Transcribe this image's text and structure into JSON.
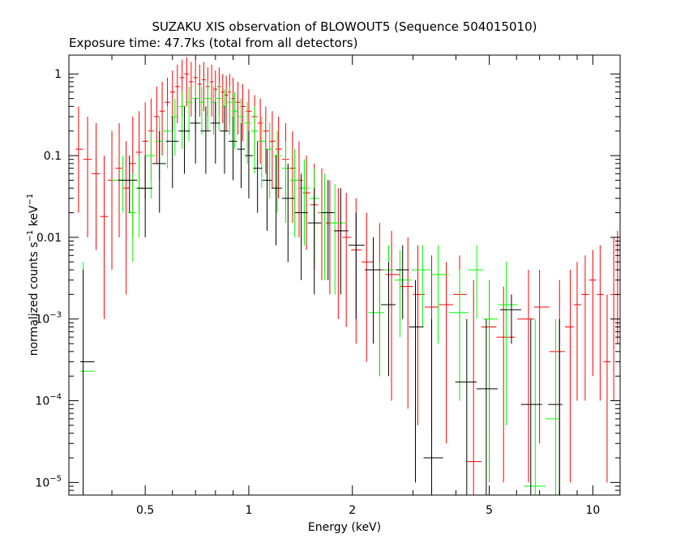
{
  "chart_data": {
    "type": "scatter",
    "title": "SUZAKU XIS observation of BLOWOUT5 (Sequence 504015010)",
    "subtitle": "Exposure time: 47.7ks (total from all detectors)",
    "xlabel": "Energy (keV)",
    "ylabel": {
      "main": "normalized counts s",
      "exp1": "−1",
      "mid": " keV",
      "exp2": "−1"
    },
    "xscale": "log",
    "yscale": "log",
    "xlim": [
      0.3,
      12
    ],
    "ylim": [
      7e-06,
      1.7
    ],
    "x_ticks": [
      {
        "value": 0.5,
        "label": "0.5"
      },
      {
        "value": 1,
        "label": "1"
      },
      {
        "value": 2,
        "label": "2"
      },
      {
        "value": 5,
        "label": "5"
      },
      {
        "value": 10,
        "label": "10"
      }
    ],
    "y_ticks": [
      {
        "value": 1,
        "label": "1"
      },
      {
        "value": 0.1,
        "label": "0.1"
      },
      {
        "value": 0.01,
        "label": "0.01"
      },
      {
        "value": 0.001,
        "label": "10",
        "exp": "−3"
      },
      {
        "value": 0.0001,
        "label": "10",
        "exp": "−4"
      },
      {
        "value": 1e-05,
        "label": "10",
        "exp": "−5"
      }
    ],
    "grid": false,
    "legend": "none",
    "series": [
      {
        "color": "#ff0000",
        "points": [
          [
            0.32,
            0.12,
            0.02,
            0.4
          ],
          [
            0.34,
            0.09,
            0.01,
            0.3
          ],
          [
            0.36,
            0.06,
            0.007,
            0.25
          ],
          [
            0.38,
            0.018,
            0.001,
            0.1
          ],
          [
            0.4,
            0.05,
            0.004,
            0.2
          ],
          [
            0.42,
            0.07,
            0.01,
            0.25
          ],
          [
            0.44,
            0.04,
            0.002,
            0.15
          ],
          [
            0.46,
            0.08,
            0.01,
            0.3
          ],
          [
            0.48,
            0.11,
            0.02,
            0.35
          ],
          [
            0.5,
            0.15,
            0.03,
            0.45
          ],
          [
            0.52,
            0.2,
            0.05,
            0.5
          ],
          [
            0.54,
            0.3,
            0.08,
            0.7
          ],
          [
            0.56,
            0.35,
            0.1,
            0.8
          ],
          [
            0.58,
            0.45,
            0.15,
            0.9
          ],
          [
            0.6,
            0.6,
            0.2,
            1.1
          ],
          [
            0.62,
            0.7,
            0.25,
            1.3
          ],
          [
            0.64,
            0.9,
            0.3,
            1.5
          ],
          [
            0.66,
            1.0,
            0.4,
            1.6
          ],
          [
            0.68,
            0.8,
            0.3,
            1.4
          ],
          [
            0.7,
            0.9,
            0.35,
            1.5
          ],
          [
            0.72,
            0.75,
            0.3,
            1.3
          ],
          [
            0.74,
            0.85,
            0.35,
            1.4
          ],
          [
            0.76,
            0.7,
            0.3,
            1.2
          ],
          [
            0.78,
            0.8,
            0.3,
            1.3
          ],
          [
            0.8,
            0.65,
            0.25,
            1.1
          ],
          [
            0.82,
            0.7,
            0.3,
            1.2
          ],
          [
            0.84,
            0.6,
            0.25,
            1.0
          ],
          [
            0.86,
            0.55,
            0.2,
            0.95
          ],
          [
            0.88,
            0.6,
            0.25,
            1.0
          ],
          [
            0.9,
            0.5,
            0.2,
            0.9
          ],
          [
            0.93,
            0.45,
            0.18,
            0.8
          ],
          [
            0.96,
            0.4,
            0.15,
            0.75
          ],
          [
            1.0,
            0.35,
            0.12,
            0.65
          ],
          [
            1.04,
            0.3,
            0.1,
            0.55
          ],
          [
            1.08,
            0.25,
            0.08,
            0.5
          ],
          [
            1.12,
            0.2,
            0.06,
            0.4
          ],
          [
            1.17,
            0.15,
            0.04,
            0.35
          ],
          [
            1.22,
            0.12,
            0.03,
            0.3
          ],
          [
            1.28,
            0.09,
            0.02,
            0.25
          ],
          [
            1.34,
            0.07,
            0.015,
            0.2
          ],
          [
            1.4,
            0.05,
            0.01,
            0.15
          ],
          [
            1.47,
            0.035,
            0.007,
            0.1
          ],
          [
            1.55,
            0.025,
            0.004,
            0.08
          ],
          [
            1.63,
            0.02,
            0.003,
            0.07
          ],
          [
            1.72,
            0.015,
            0.002,
            0.05
          ],
          [
            1.82,
            0.012,
            0.001,
            0.04
          ],
          [
            1.92,
            0.01,
            0.0008,
            0.035
          ],
          [
            2.05,
            0.007,
            0.0005,
            0.03
          ],
          [
            2.2,
            0.005,
            0.0003,
            0.02
          ],
          [
            2.4,
            0.004,
            0.0002,
            0.015
          ],
          [
            2.6,
            0.0035,
            0.0001,
            0.012
          ],
          [
            2.9,
            0.0025,
            8e-05,
            0.01
          ],
          [
            3.1,
            0.002,
            5e-05,
            0.008
          ],
          [
            3.4,
            0.0014,
            4e-05,
            0.006
          ],
          [
            3.75,
            0.0015,
            3e-05,
            0.005
          ],
          [
            4.1,
            0.002,
            0.0001,
            0.006
          ],
          [
            4.5,
            1.8e-05,
            7e-06,
            0.003
          ],
          [
            5.0,
            0.0008,
            1e-05,
            0.003
          ],
          [
            5.5,
            0.0006,
            1e-05,
            0.0025
          ],
          [
            6.5,
            0.001,
            1e-05,
            0.004
          ],
          [
            7.0,
            0.0014,
            3e-05,
            0.004
          ],
          [
            8.0,
            0.0004,
            7e-06,
            0.003
          ],
          [
            8.6,
            0.0008,
            1e-05,
            0.004
          ],
          [
            9.0,
            0.0015,
            0.0001,
            0.005
          ],
          [
            9.5,
            0.002,
            0.0001,
            0.006
          ],
          [
            10.0,
            0.003,
            0.0002,
            0.007
          ],
          [
            10.5,
            0.002,
            0.0001,
            0.008
          ],
          [
            11.0,
            0.0003,
            1e-05,
            0.002
          ],
          [
            11.5,
            0.002,
            0.0001,
            0.01
          ],
          [
            11.8,
            0.004,
            0.0005,
            0.012
          ]
        ]
      },
      {
        "color": "#00ff00",
        "points": [
          [
            0.33,
            0.00023,
            7e-06,
            0.005
          ],
          [
            0.43,
            0.05,
            0.02,
            0.1
          ],
          [
            0.46,
            0.02,
            0.005,
            0.06
          ],
          [
            0.48,
            0.04,
            0.01,
            0.1
          ],
          [
            0.52,
            0.1,
            0.03,
            0.2
          ],
          [
            0.55,
            0.15,
            0.05,
            0.3
          ],
          [
            0.58,
            0.2,
            0.07,
            0.4
          ],
          [
            0.61,
            0.3,
            0.1,
            0.5
          ],
          [
            0.64,
            0.4,
            0.12,
            0.6
          ],
          [
            0.67,
            0.45,
            0.15,
            0.7
          ],
          [
            0.7,
            0.5,
            0.2,
            0.75
          ],
          [
            0.73,
            0.45,
            0.18,
            0.7
          ],
          [
            0.76,
            0.5,
            0.2,
            0.8
          ],
          [
            0.79,
            0.45,
            0.18,
            0.7
          ],
          [
            0.82,
            0.5,
            0.2,
            0.75
          ],
          [
            0.85,
            0.4,
            0.15,
            0.65
          ],
          [
            0.88,
            0.45,
            0.18,
            0.7
          ],
          [
            0.91,
            0.35,
            0.12,
            0.6
          ],
          [
            0.95,
            0.3,
            0.1,
            0.5
          ],
          [
            0.99,
            0.25,
            0.08,
            0.45
          ],
          [
            1.04,
            0.2,
            0.06,
            0.4
          ],
          [
            1.09,
            0.15,
            0.04,
            0.3
          ],
          [
            1.15,
            0.12,
            0.03,
            0.25
          ],
          [
            1.21,
            0.1,
            0.02,
            0.2
          ],
          [
            1.28,
            0.07,
            0.015,
            0.15
          ],
          [
            1.36,
            0.05,
            0.01,
            0.12
          ],
          [
            1.45,
            0.04,
            0.008,
            0.09
          ],
          [
            1.55,
            0.03,
            0.005,
            0.07
          ],
          [
            1.66,
            0.02,
            0.003,
            0.06
          ],
          [
            1.78,
            0.015,
            0.002,
            0.045
          ],
          [
            2.4,
            0.0012,
            0.0002,
            0.005
          ],
          [
            2.55,
            0.004,
            0.001,
            0.008
          ],
          [
            2.75,
            0.003,
            0.0006,
            0.007
          ],
          [
            3.2,
            0.004,
            0.0008,
            0.008
          ],
          [
            3.55,
            0.0035,
            0.0005,
            0.008
          ],
          [
            4.1,
            0.0012,
            0.0001,
            0.004
          ],
          [
            4.6,
            0.004,
            0.001,
            0.008
          ],
          [
            5.0,
            0.001,
            1e-05,
            0.003
          ],
          [
            5.6,
            0.0015,
            5e-05,
            0.005
          ],
          [
            6.8,
            9e-06,
            7e-06,
            0.001
          ],
          [
            7.8,
            6e-05,
            7e-06,
            0.001
          ]
        ]
      },
      {
        "color": "#000000",
        "points": [
          [
            0.33,
            0.0003,
            7e-06,
            0.004
          ],
          [
            0.45,
            0.05,
            0.02,
            0.1
          ],
          [
            0.5,
            0.04,
            0.01,
            0.1
          ],
          [
            0.55,
            0.08,
            0.02,
            0.2
          ],
          [
            0.6,
            0.15,
            0.04,
            0.3
          ],
          [
            0.65,
            0.2,
            0.06,
            0.4
          ],
          [
            0.7,
            0.25,
            0.08,
            0.5
          ],
          [
            0.75,
            0.2,
            0.06,
            0.4
          ],
          [
            0.8,
            0.25,
            0.08,
            0.45
          ],
          [
            0.85,
            0.2,
            0.06,
            0.4
          ],
          [
            0.9,
            0.15,
            0.05,
            0.3
          ],
          [
            0.95,
            0.12,
            0.04,
            0.25
          ],
          [
            1.0,
            0.1,
            0.03,
            0.2
          ],
          [
            1.06,
            0.07,
            0.02,
            0.15
          ],
          [
            1.13,
            0.05,
            0.012,
            0.12
          ],
          [
            1.2,
            0.04,
            0.008,
            0.1
          ],
          [
            1.3,
            0.03,
            0.005,
            0.08
          ],
          [
            1.42,
            0.02,
            0.003,
            0.06
          ],
          [
            1.55,
            0.015,
            0.002,
            0.04
          ],
          [
            1.7,
            0.02,
            0.003,
            0.05
          ],
          [
            1.85,
            0.012,
            0.002,
            0.04
          ],
          [
            2.05,
            0.008,
            0.001,
            0.02
          ],
          [
            2.3,
            0.004,
            0.0005,
            0.01
          ],
          [
            2.55,
            0.0015,
            0.0002,
            0.005
          ],
          [
            2.8,
            0.004,
            0.001,
            0.008
          ],
          [
            3.05,
            0.0008,
            1e-05,
            0.003
          ],
          [
            3.4,
            2e-05,
            7e-06,
            0.001
          ],
          [
            4.3,
            0.00017,
            7e-06,
            0.001
          ],
          [
            4.9,
            0.00014,
            7e-06,
            0.001
          ],
          [
            5.8,
            0.0013,
            0.0005,
            0.002
          ],
          [
            6.6,
            9e-05,
            7e-06,
            0.001
          ],
          [
            8.0,
            9e-05,
            7e-06,
            0.001
          ]
        ]
      }
    ]
  }
}
